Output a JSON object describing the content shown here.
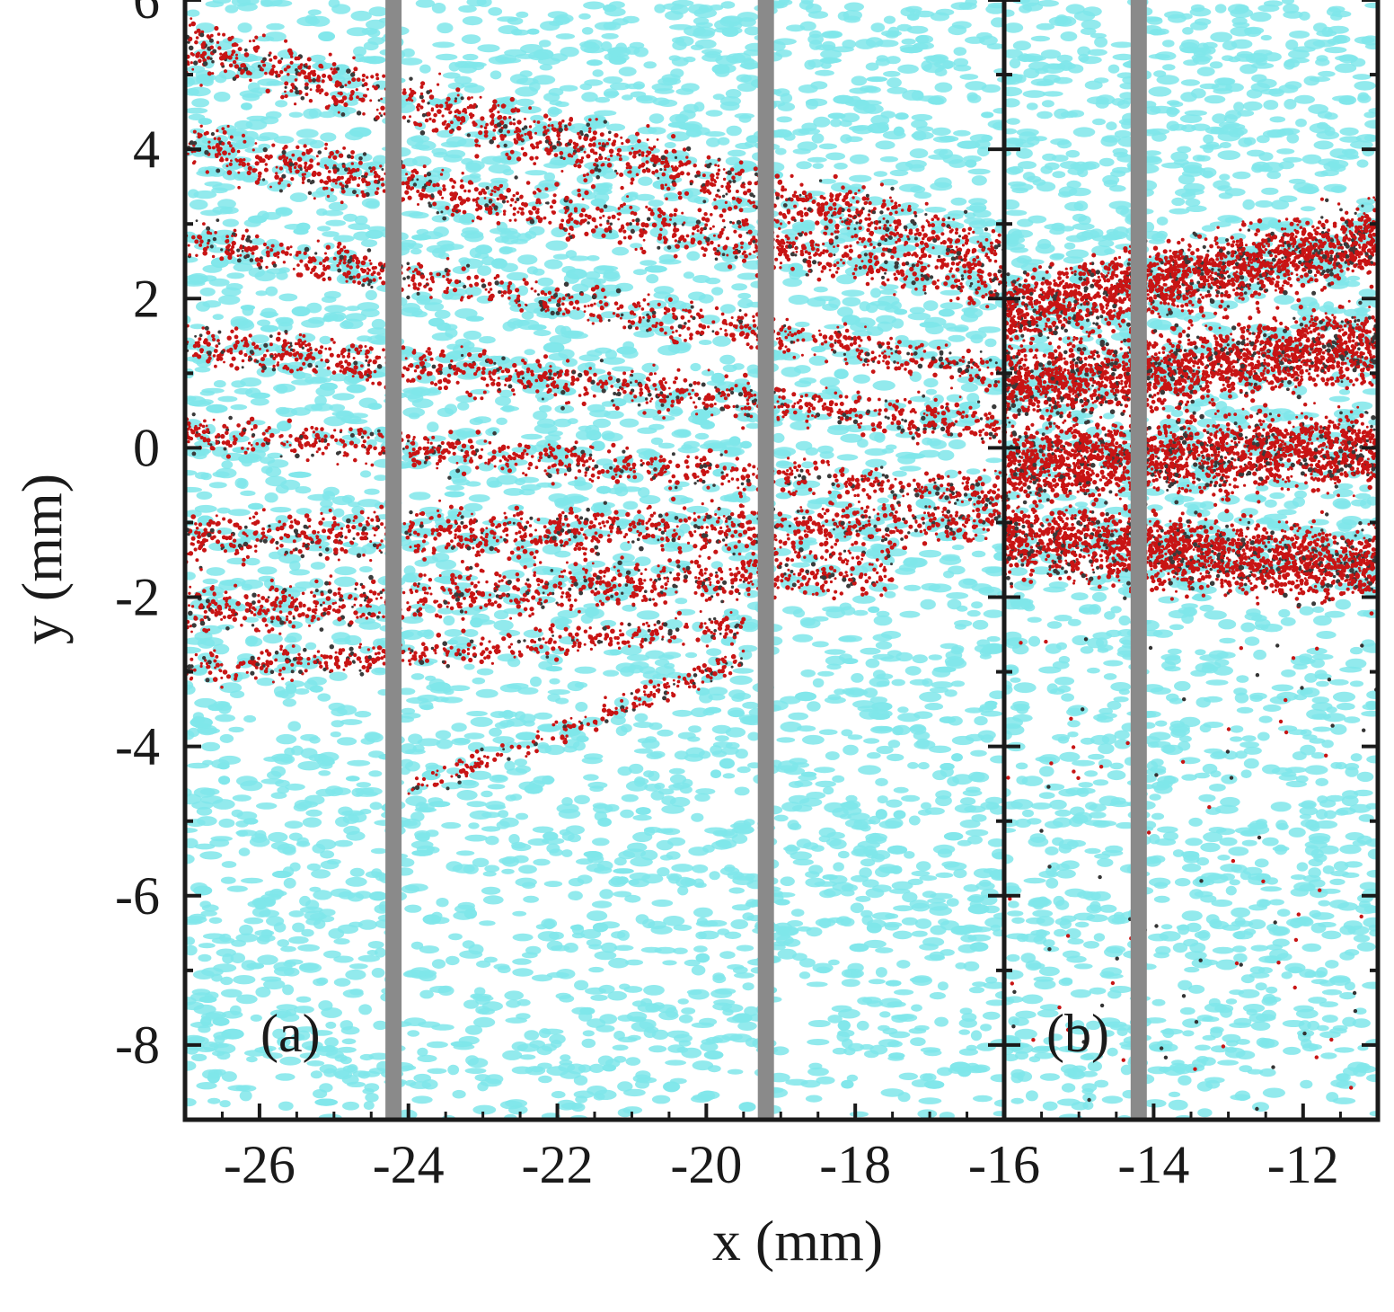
{
  "chart_data": {
    "type": "scatter",
    "title": "",
    "xlabel": "x (mm)",
    "ylabel": "y (mm)",
    "grid": false,
    "legend": "none",
    "colors": {
      "background_points": "#7fe6ea",
      "beam_points": "#c81414",
      "slit_lines": "#8a8a8a",
      "frame": "#1a1a1a"
    },
    "panels": [
      {
        "label": "(a)",
        "xlim": [
          -27,
          -16
        ],
        "ylim": [
          -9,
          6
        ],
        "x_ticks": [
          "-26",
          "-24",
          "-22",
          "-20",
          "-18",
          "-16"
        ],
        "y_ticks": [
          "-8",
          "-6",
          "-4",
          "-2",
          "0",
          "2",
          "4",
          "6"
        ],
        "slit_x": [
          -24.2,
          -19.2
        ],
        "beam_bands": [
          {
            "x0": -27,
            "x1": -16,
            "y0_start": 5.4,
            "y0_end": 2.6,
            "width": 0.9
          },
          {
            "x0": -27,
            "x1": -16,
            "y0_start": 4.0,
            "y0_end": 2.2,
            "width": 0.8
          },
          {
            "x0": -27,
            "x1": -16,
            "y0_start": 2.8,
            "y0_end": 1.0,
            "width": 0.6
          },
          {
            "x0": -27,
            "x1": -16,
            "y0_start": 1.4,
            "y0_end": 0.3,
            "width": 0.7
          },
          {
            "x0": -27,
            "x1": -16,
            "y0_start": 0.2,
            "y0_end": -0.6,
            "width": 0.6
          },
          {
            "x0": -27,
            "x1": -16,
            "y0_start": -1.2,
            "y0_end": -1.0,
            "width": 0.8
          },
          {
            "x0": -27,
            "x1": -17.5,
            "y0_start": -2.2,
            "y0_end": -1.6,
            "width": 0.8
          },
          {
            "x0": -27,
            "x1": -19.5,
            "y0_start": -3.0,
            "y0_end": -2.4,
            "width": 0.5
          },
          {
            "x0": -24,
            "x1": -19.5,
            "y0_start": -4.6,
            "y0_end": -2.8,
            "width": 0.4
          }
        ]
      },
      {
        "label": "(b)",
        "xlim": [
          -16,
          -11
        ],
        "ylim": [
          -9,
          6
        ],
        "x_ticks": [
          "-16",
          "-14",
          "-12"
        ],
        "y_ticks": [],
        "slit_x": [
          -14.2
        ],
        "beam_bands": [
          {
            "x0": -16,
            "x1": -11,
            "y0_start": 1.8,
            "y0_end": 2.8,
            "width": 1.2
          },
          {
            "x0": -16,
            "x1": -11,
            "y0_start": 0.8,
            "y0_end": 1.4,
            "width": 1.2
          },
          {
            "x0": -16,
            "x1": -11,
            "y0_start": -0.2,
            "y0_end": 0.0,
            "width": 1.2
          },
          {
            "x0": -16,
            "x1": -11,
            "y0_start": -1.2,
            "y0_end": -1.6,
            "width": 1.2
          }
        ]
      }
    ]
  }
}
